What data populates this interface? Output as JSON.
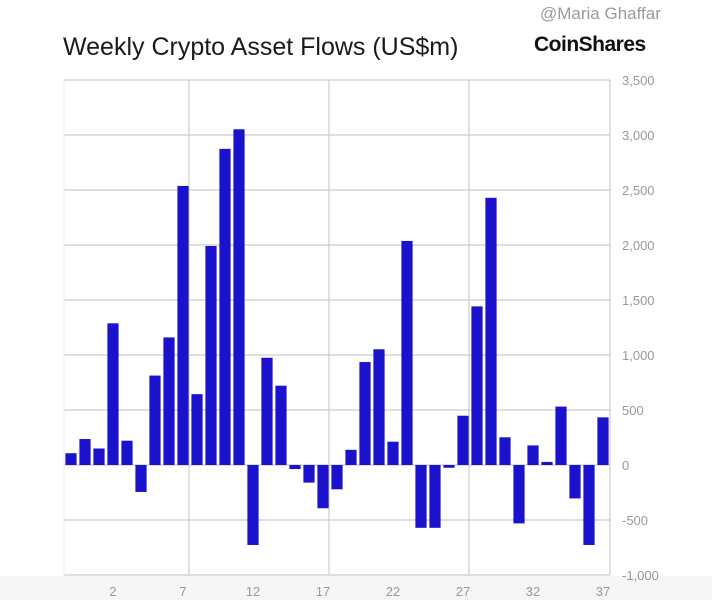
{
  "chart_data": {
    "type": "bar",
    "title": "Weekly Crypto Asset Flows (US$m)",
    "logo": "CoinShares",
    "watermark": "@Maria Ghaffar",
    "xlabel": "",
    "ylabel": "",
    "x": [
      -1,
      0,
      1,
      2,
      3,
      4,
      5,
      6,
      7,
      8,
      9,
      10,
      11,
      12,
      13,
      14,
      15,
      16,
      17,
      18,
      19,
      20,
      21,
      22,
      23,
      24,
      25,
      26,
      27,
      28,
      29,
      30,
      31,
      32,
      33,
      34,
      35,
      36,
      37
    ],
    "values": [
      107,
      236,
      150,
      1288,
      221,
      -245,
      813,
      1160,
      2537,
      644,
      1991,
      2874,
      3052,
      -727,
      975,
      721,
      -37,
      -160,
      -393,
      -221,
      138,
      936,
      1052,
      212,
      2037,
      -571,
      -571,
      -25,
      448,
      1442,
      2429,
      252,
      -531,
      178,
      28,
      531,
      -304,
      -727,
      433
    ],
    "x_ticks": [
      2,
      7,
      12,
      17,
      22,
      27,
      32,
      37
    ],
    "x_ticks_labels": [
      "2",
      "7",
      "12",
      "17",
      "22",
      "27",
      "32",
      "37"
    ],
    "y_ticks": [
      -1000,
      -500,
      0,
      500,
      1000,
      1500,
      2000,
      2500,
      3000,
      3500
    ],
    "y_tick_labels": [
      "-1,000",
      "-500",
      "0",
      "500",
      "1,000",
      "1,500",
      "2,000",
      "2,500",
      "3,000",
      "3,500"
    ],
    "ylim": [
      -1000,
      3500
    ],
    "xlim": [
      -1.5,
      37.5
    ],
    "y_axis_side": "right",
    "grid": true,
    "bar_color": "#1a12cc",
    "grid_color": "#cccccc"
  }
}
